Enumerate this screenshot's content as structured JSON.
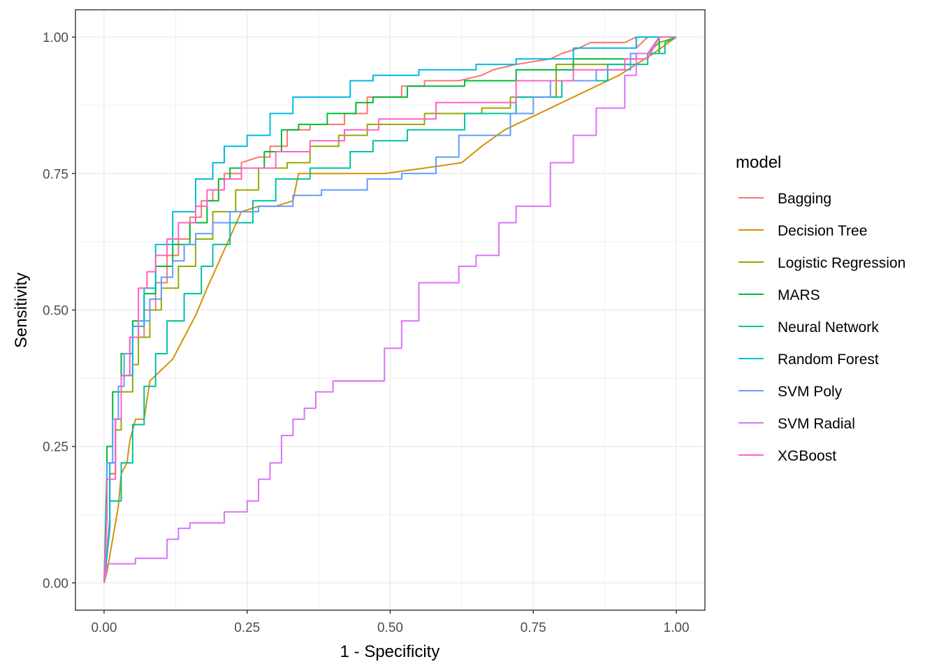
{
  "chart_data": {
    "type": "line",
    "title": "",
    "xlabel": "1 - Specificity",
    "ylabel": "Sensitivity",
    "xlim": [
      -0.05,
      1.05
    ],
    "ylim": [
      -0.05,
      1.05
    ],
    "x_ticks": [
      {
        "value": 0.0,
        "label": "0.00"
      },
      {
        "value": 0.25,
        "label": "0.25"
      },
      {
        "value": 0.5,
        "label": "0.50"
      },
      {
        "value": 0.75,
        "label": "0.75"
      },
      {
        "value": 1.0,
        "label": "1.00"
      }
    ],
    "y_ticks": [
      {
        "value": 0.0,
        "label": "0.00"
      },
      {
        "value": 0.25,
        "label": "0.25"
      },
      {
        "value": 0.5,
        "label": "0.50"
      },
      {
        "value": 0.75,
        "label": "0.75"
      },
      {
        "value": 1.0,
        "label": "1.00"
      }
    ],
    "grid": true,
    "legend": {
      "title": "model",
      "position": "right"
    },
    "series": [
      {
        "name": "Bagging",
        "color": "#F8766D",
        "x": [
          0,
          0.01,
          0.01,
          0.02,
          0.02,
          0.03,
          0.03,
          0.05,
          0.05,
          0.07,
          0.07,
          0.09,
          0.09,
          0.11,
          0.11,
          0.13,
          0.13,
          0.15,
          0.15,
          0.17,
          0.17,
          0.19,
          0.19,
          0.21,
          0.21,
          0.24,
          0.24,
          0.27,
          0.29,
          0.29,
          0.32,
          0.32,
          0.36,
          0.36,
          0.42,
          0.42,
          0.46,
          0.46,
          0.5,
          0.52,
          0.52,
          0.56,
          0.56,
          0.62,
          0.66,
          0.68,
          0.72,
          0.78,
          0.8,
          0.83,
          0.85,
          0.91,
          0.93,
          0.93,
          0.95,
          0.97,
          1.0
        ],
        "y": [
          0,
          0.12,
          0.2,
          0.2,
          0.3,
          0.3,
          0.38,
          0.38,
          0.45,
          0.45,
          0.5,
          0.5,
          0.55,
          0.55,
          0.6,
          0.6,
          0.63,
          0.63,
          0.67,
          0.67,
          0.7,
          0.7,
          0.72,
          0.72,
          0.75,
          0.75,
          0.77,
          0.78,
          0.78,
          0.8,
          0.8,
          0.83,
          0.83,
          0.84,
          0.84,
          0.86,
          0.86,
          0.89,
          0.89,
          0.89,
          0.91,
          0.91,
          0.92,
          0.92,
          0.93,
          0.94,
          0.95,
          0.96,
          0.97,
          0.98,
          0.99,
          0.99,
          1.0,
          0.98,
          1.0,
          1.0,
          1.0
        ]
      },
      {
        "name": "Decision Tree",
        "color": "#D39200",
        "x": [
          0,
          0.005,
          0.01,
          0.015,
          0.02,
          0.025,
          0.03,
          0.04,
          0.045,
          0.05,
          0.055,
          0.07,
          0.08,
          0.09,
          0.1,
          0.12,
          0.14,
          0.16,
          0.18,
          0.21,
          0.24,
          0.27,
          0.29,
          0.3,
          0.33,
          0.34,
          0.36,
          0.49,
          0.56,
          0.625,
          0.66,
          0.7,
          0.8,
          0.9,
          0.96,
          1.0
        ],
        "y": [
          0,
          0.02,
          0.05,
          0.08,
          0.11,
          0.14,
          0.2,
          0.22,
          0.26,
          0.28,
          0.3,
          0.3,
          0.37,
          0.38,
          0.39,
          0.41,
          0.45,
          0.49,
          0.54,
          0.61,
          0.68,
          0.69,
          0.69,
          0.69,
          0.7,
          0.75,
          0.75,
          0.75,
          0.76,
          0.77,
          0.8,
          0.83,
          0.88,
          0.93,
          0.97,
          1.0
        ]
      },
      {
        "name": "Logistic Regression",
        "color": "#93AA00",
        "x": [
          0,
          0.01,
          0.01,
          0.02,
          0.02,
          0.03,
          0.03,
          0.05,
          0.05,
          0.06,
          0.06,
          0.08,
          0.08,
          0.1,
          0.1,
          0.13,
          0.13,
          0.16,
          0.16,
          0.19,
          0.19,
          0.23,
          0.23,
          0.27,
          0.27,
          0.32,
          0.32,
          0.36,
          0.36,
          0.41,
          0.41,
          0.46,
          0.46,
          0.56,
          0.56,
          0.66,
          0.66,
          0.71,
          0.71,
          0.79,
          0.79,
          0.92,
          0.92,
          0.95,
          0.97,
          1.0
        ],
        "y": [
          0,
          0.1,
          0.2,
          0.2,
          0.28,
          0.28,
          0.35,
          0.35,
          0.4,
          0.4,
          0.45,
          0.45,
          0.5,
          0.5,
          0.54,
          0.54,
          0.58,
          0.58,
          0.63,
          0.63,
          0.68,
          0.68,
          0.72,
          0.72,
          0.76,
          0.76,
          0.77,
          0.77,
          0.8,
          0.8,
          0.82,
          0.82,
          0.84,
          0.84,
          0.86,
          0.86,
          0.87,
          0.87,
          0.89,
          0.89,
          0.95,
          0.95,
          0.97,
          0.97,
          0.99,
          1.0
        ]
      },
      {
        "name": "MARS",
        "color": "#00BA38",
        "x": [
          0,
          0.005,
          0.005,
          0.015,
          0.015,
          0.03,
          0.03,
          0.05,
          0.05,
          0.07,
          0.07,
          0.09,
          0.09,
          0.12,
          0.12,
          0.15,
          0.15,
          0.18,
          0.18,
          0.2,
          0.2,
          0.22,
          0.22,
          0.28,
          0.28,
          0.31,
          0.31,
          0.34,
          0.34,
          0.39,
          0.39,
          0.44,
          0.44,
          0.47,
          0.47,
          0.53,
          0.53,
          0.63,
          0.63,
          0.72,
          0.72,
          0.82,
          0.82,
          0.93,
          0.93,
          0.97,
          0.97,
          1.0
        ],
        "y": [
          0,
          0.21,
          0.25,
          0.25,
          0.35,
          0.35,
          0.42,
          0.42,
          0.48,
          0.48,
          0.53,
          0.53,
          0.58,
          0.58,
          0.62,
          0.62,
          0.66,
          0.66,
          0.7,
          0.7,
          0.74,
          0.74,
          0.76,
          0.76,
          0.79,
          0.79,
          0.83,
          0.83,
          0.84,
          0.84,
          0.86,
          0.86,
          0.88,
          0.88,
          0.89,
          0.89,
          0.91,
          0.91,
          0.92,
          0.92,
          0.94,
          0.94,
          0.96,
          0.96,
          0.97,
          0.97,
          1.0,
          1.0
        ]
      },
      {
        "name": "Neural Network",
        "color": "#00C19F",
        "x": [
          0,
          0.01,
          0.01,
          0.03,
          0.03,
          0.05,
          0.05,
          0.07,
          0.07,
          0.09,
          0.09,
          0.11,
          0.11,
          0.14,
          0.14,
          0.17,
          0.17,
          0.19,
          0.19,
          0.22,
          0.22,
          0.26,
          0.26,
          0.3,
          0.3,
          0.36,
          0.36,
          0.43,
          0.43,
          0.47,
          0.47,
          0.53,
          0.53,
          0.63,
          0.63,
          0.72,
          0.72,
          0.8,
          0.8,
          0.88,
          0.88,
          0.95,
          0.95,
          0.98,
          0.98,
          1.0
        ],
        "y": [
          0,
          0.1,
          0.15,
          0.15,
          0.22,
          0.22,
          0.29,
          0.29,
          0.36,
          0.36,
          0.42,
          0.42,
          0.48,
          0.48,
          0.53,
          0.53,
          0.58,
          0.58,
          0.62,
          0.62,
          0.66,
          0.66,
          0.7,
          0.7,
          0.74,
          0.74,
          0.76,
          0.76,
          0.79,
          0.79,
          0.81,
          0.81,
          0.83,
          0.83,
          0.86,
          0.86,
          0.89,
          0.89,
          0.92,
          0.92,
          0.95,
          0.95,
          0.97,
          0.97,
          0.99,
          1.0
        ]
      },
      {
        "name": "Random Forest",
        "color": "#00B9E3",
        "x": [
          0,
          0.01,
          0.01,
          0.02,
          0.02,
          0.03,
          0.03,
          0.05,
          0.05,
          0.07,
          0.07,
          0.09,
          0.09,
          0.12,
          0.12,
          0.16,
          0.16,
          0.19,
          0.19,
          0.21,
          0.21,
          0.25,
          0.25,
          0.29,
          0.29,
          0.33,
          0.33,
          0.43,
          0.43,
          0.47,
          0.47,
          0.55,
          0.55,
          0.65,
          0.65,
          0.72,
          0.72,
          0.82,
          0.82,
          0.93,
          0.93,
          0.96,
          1.0
        ],
        "y": [
          0,
          0.1,
          0.22,
          0.22,
          0.3,
          0.3,
          0.38,
          0.38,
          0.47,
          0.47,
          0.54,
          0.54,
          0.62,
          0.62,
          0.68,
          0.68,
          0.74,
          0.74,
          0.77,
          0.77,
          0.8,
          0.8,
          0.82,
          0.82,
          0.86,
          0.86,
          0.89,
          0.89,
          0.92,
          0.92,
          0.93,
          0.93,
          0.94,
          0.94,
          0.95,
          0.95,
          0.96,
          0.96,
          0.98,
          0.98,
          1.0,
          1.0,
          1.0
        ]
      },
      {
        "name": "SVM Poly",
        "color": "#619CFF",
        "x": [
          0,
          0.005,
          0.005,
          0.015,
          0.015,
          0.025,
          0.025,
          0.035,
          0.035,
          0.045,
          0.045,
          0.06,
          0.06,
          0.08,
          0.08,
          0.1,
          0.1,
          0.12,
          0.12,
          0.14,
          0.14,
          0.16,
          0.16,
          0.19,
          0.19,
          0.22,
          0.22,
          0.27,
          0.27,
          0.33,
          0.33,
          0.38,
          0.38,
          0.46,
          0.46,
          0.52,
          0.52,
          0.58,
          0.58,
          0.62,
          0.62,
          0.71,
          0.71,
          0.75,
          0.75,
          0.78,
          0.78,
          0.86,
          0.86,
          0.92,
          0.92,
          0.95,
          0.97,
          1.0
        ],
        "y": [
          0,
          0.15,
          0.22,
          0.22,
          0.3,
          0.3,
          0.36,
          0.36,
          0.42,
          0.42,
          0.45,
          0.45,
          0.48,
          0.48,
          0.52,
          0.52,
          0.56,
          0.56,
          0.59,
          0.59,
          0.62,
          0.62,
          0.64,
          0.64,
          0.66,
          0.66,
          0.68,
          0.68,
          0.69,
          0.69,
          0.71,
          0.71,
          0.72,
          0.72,
          0.74,
          0.74,
          0.75,
          0.75,
          0.78,
          0.78,
          0.82,
          0.82,
          0.86,
          0.86,
          0.89,
          0.89,
          0.92,
          0.92,
          0.94,
          0.94,
          0.97,
          0.97,
          1.0,
          1.0
        ]
      },
      {
        "name": "SVM Radial",
        "color": "#DB72FB",
        "x": [
          0,
          0.005,
          0.005,
          0.055,
          0.055,
          0.11,
          0.11,
          0.13,
          0.13,
          0.15,
          0.15,
          0.21,
          0.21,
          0.25,
          0.25,
          0.27,
          0.27,
          0.29,
          0.29,
          0.31,
          0.31,
          0.33,
          0.33,
          0.35,
          0.35,
          0.37,
          0.37,
          0.4,
          0.4,
          0.44,
          0.44,
          0.49,
          0.49,
          0.52,
          0.52,
          0.55,
          0.55,
          0.62,
          0.62,
          0.65,
          0.65,
          0.69,
          0.69,
          0.72,
          0.72,
          0.78,
          0.78,
          0.82,
          0.82,
          0.86,
          0.86,
          0.91,
          0.91,
          0.93,
          0.93,
          0.95,
          0.97,
          1.0
        ],
        "y": [
          0,
          0.03,
          0.035,
          0.035,
          0.045,
          0.045,
          0.08,
          0.08,
          0.1,
          0.1,
          0.11,
          0.11,
          0.13,
          0.13,
          0.15,
          0.15,
          0.19,
          0.19,
          0.22,
          0.22,
          0.27,
          0.27,
          0.3,
          0.3,
          0.32,
          0.32,
          0.35,
          0.35,
          0.37,
          0.37,
          0.37,
          0.37,
          0.43,
          0.43,
          0.48,
          0.48,
          0.55,
          0.55,
          0.58,
          0.58,
          0.6,
          0.6,
          0.66,
          0.66,
          0.69,
          0.69,
          0.77,
          0.77,
          0.82,
          0.82,
          0.87,
          0.87,
          0.93,
          0.93,
          0.97,
          0.97,
          1.0,
          1.0
        ]
      },
      {
        "name": "XGBoost",
        "color": "#FF61C3",
        "x": [
          0,
          0.005,
          0.005,
          0.02,
          0.02,
          0.03,
          0.03,
          0.045,
          0.045,
          0.06,
          0.06,
          0.075,
          0.075,
          0.09,
          0.09,
          0.11,
          0.11,
          0.13,
          0.13,
          0.16,
          0.16,
          0.18,
          0.18,
          0.21,
          0.21,
          0.24,
          0.24,
          0.3,
          0.3,
          0.36,
          0.36,
          0.42,
          0.42,
          0.48,
          0.48,
          0.58,
          0.58,
          0.72,
          0.72,
          0.82,
          0.82,
          0.91,
          0.91,
          0.95,
          0.97,
          1.0
        ],
        "y": [
          0,
          0.12,
          0.19,
          0.19,
          0.3,
          0.3,
          0.38,
          0.38,
          0.45,
          0.45,
          0.54,
          0.54,
          0.57,
          0.57,
          0.6,
          0.6,
          0.63,
          0.63,
          0.66,
          0.66,
          0.69,
          0.69,
          0.72,
          0.72,
          0.74,
          0.74,
          0.76,
          0.76,
          0.79,
          0.79,
          0.81,
          0.81,
          0.83,
          0.83,
          0.85,
          0.85,
          0.88,
          0.88,
          0.92,
          0.92,
          0.94,
          0.94,
          0.96,
          0.96,
          1.0,
          1.0
        ]
      }
    ]
  }
}
